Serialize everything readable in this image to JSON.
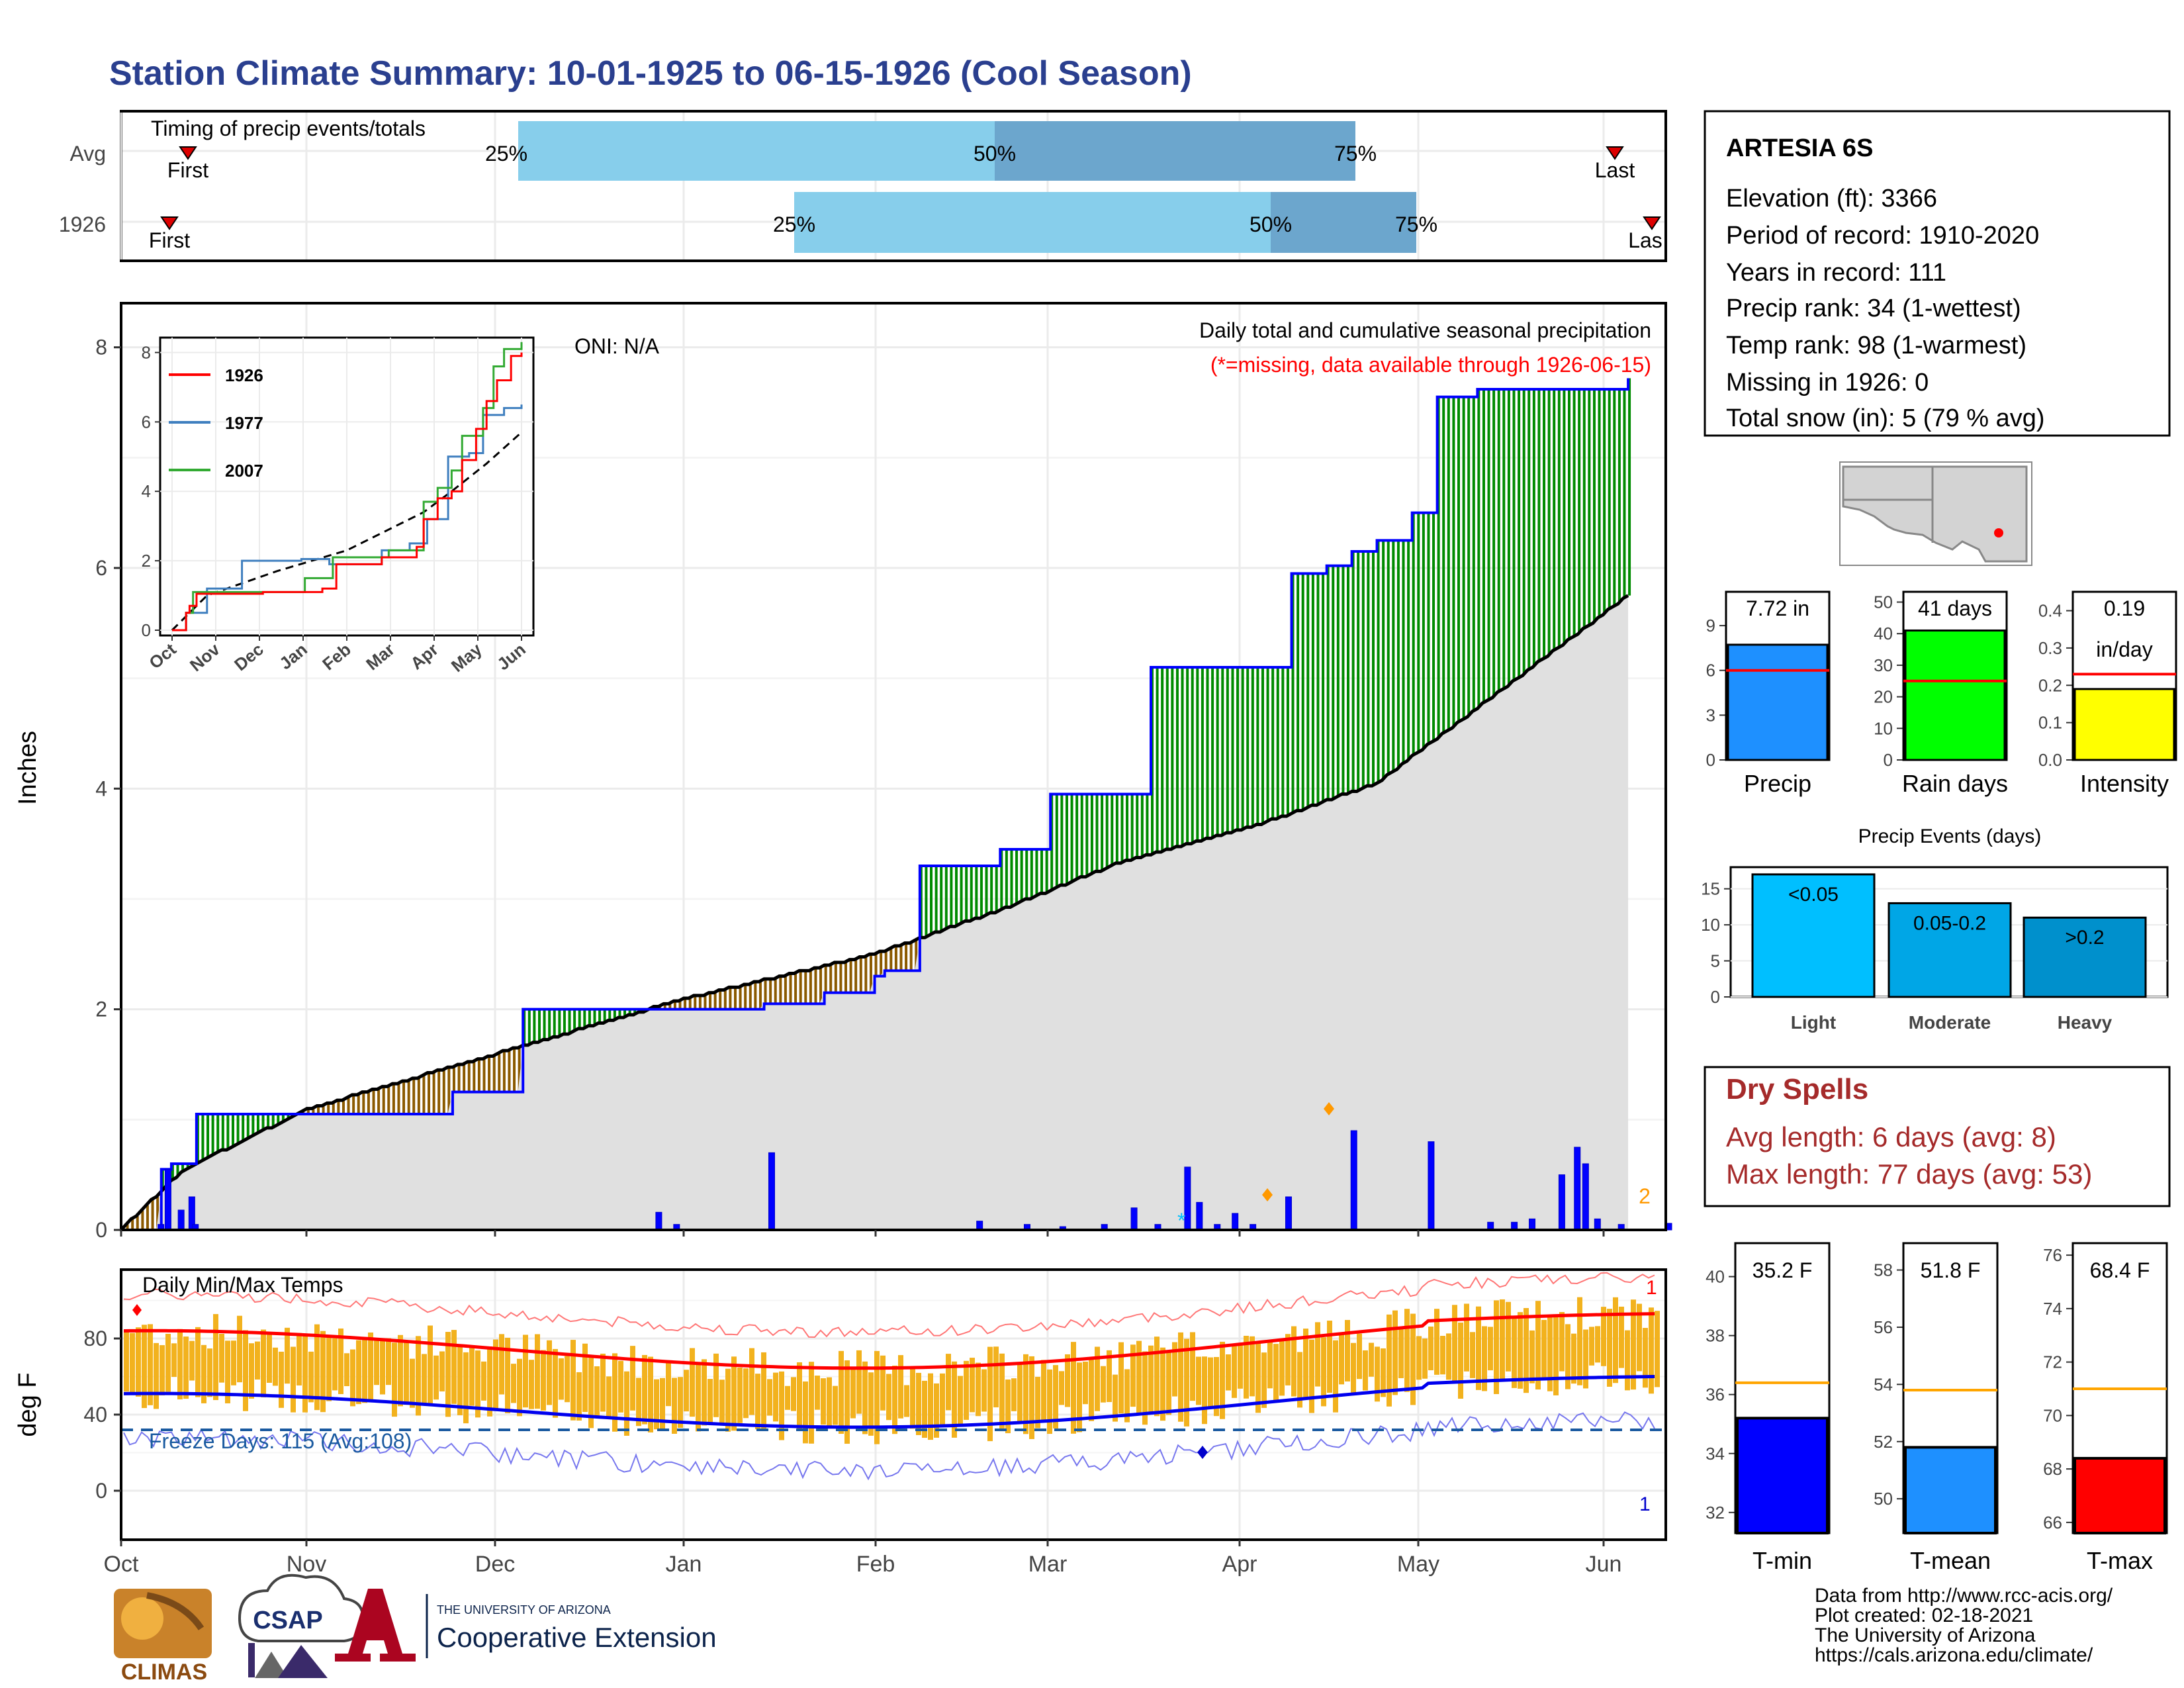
{
  "title": "Station Climate Summary: 10-01-1925 to 06-15-1926 (Cool Season)",
  "colors": {
    "title": "#2a3f8f",
    "light_blue": "#87ceeb",
    "mid_blue": "#6ca6cd",
    "green": "#008b00",
    "brown": "#8b5a00",
    "gray_fill": "#e0e0e0",
    "bar_blue": "#0000ff",
    "dry_red": "#a52a2a",
    "temp_bar": "#f2b21e",
    "tmax_line": "#ff0000",
    "tmin_line": "#0000ee",
    "blue_event": "#00bfff",
    "tmean_blue": "#1e90ff",
    "precip_bar": "#1e90ff",
    "rain_bar": "#00ff00",
    "int_bar": "#ffff00"
  },
  "timing": {
    "label": "Timing of precip events/totals",
    "rows": [
      "Avg",
      "1926"
    ],
    "first_label": "First",
    "last_labels": [
      "Last",
      "Las"
    ],
    "pct_labels": [
      "25%",
      "50%",
      "75%"
    ]
  },
  "main": {
    "ylabel": "Inches",
    "oni": "ONI: N/A",
    "note1": "Daily total and cumulative seasonal precipitation",
    "note2": "(*=missing, data available through 1926-06-15)",
    "right_num": "2",
    "yticks": [
      "0",
      "2",
      "4",
      "6",
      "8"
    ]
  },
  "inset": {
    "legend": [
      "1926",
      "1977",
      "2007"
    ],
    "yticks": [
      "0",
      "2",
      "4",
      "6",
      "8"
    ],
    "xticks": [
      "Oct",
      "Nov",
      "Dec",
      "Jan",
      "Feb",
      "Mar",
      "Apr",
      "May",
      "Jun"
    ]
  },
  "temps": {
    "title": "Daily Min/Max Temps",
    "freeze": "Freeze Days: 115 (Avg:108)",
    "ylabel": "deg F",
    "yticks": [
      "0",
      "40",
      "80"
    ],
    "top_num": "1",
    "bot_num": "1"
  },
  "months": [
    "Oct",
    "Nov",
    "Dec",
    "Jan",
    "Feb",
    "Mar",
    "Apr",
    "May",
    "Jun"
  ],
  "info": {
    "station": "ARTESIA 6S",
    "lines": [
      "Elevation (ft): 3366",
      "Period of record: 1910-2020",
      "Years in record: 111",
      "Precip rank: 34 (1-wettest)",
      "Temp rank: 98 (1-warmest)",
      "Missing in 1926: 0",
      "Total snow (in): 5 (79 % avg)"
    ]
  },
  "small_bars": [
    {
      "label": "Precip",
      "value_text": "7.72 in",
      "value": 7.72,
      "avg": 6.0,
      "max": 11,
      "ticks": [
        "0",
        "3",
        "6",
        "9"
      ],
      "tickvals": [
        0,
        3,
        6,
        9
      ]
    },
    {
      "label": "Rain days",
      "value_text": "41 days",
      "value": 41,
      "avg": 25,
      "max": 52,
      "ticks": [
        "0",
        "10",
        "20",
        "30",
        "40",
        "50"
      ],
      "tickvals": [
        0,
        10,
        20,
        30,
        40,
        50
      ]
    },
    {
      "label": "Intensity",
      "value_text": "0.19",
      "value_text2": "in/day",
      "value": 0.19,
      "avg": 0.23,
      "max": 0.44,
      "ticks": [
        "0.0",
        "0.1",
        "0.2",
        "0.3",
        "0.4"
      ],
      "tickvals": [
        0,
        0.1,
        0.2,
        0.3,
        0.4
      ]
    }
  ],
  "events": {
    "title": "Precip Events (days)",
    "cats": [
      "Light",
      "Moderate",
      "Heavy"
    ],
    "labels": [
      "<0.05",
      "0.05-0.2",
      ">0.2"
    ],
    "values": [
      17,
      13,
      11
    ],
    "yticks": [
      "0",
      "5",
      "10",
      "15"
    ],
    "colors": [
      "#00bfff",
      "#00a6e6",
      "#0090cc"
    ]
  },
  "dry": {
    "title": "Dry Spells",
    "avg": "Avg length: 6 days (avg: 8)",
    "max": "Max length: 77 days (avg: 53)"
  },
  "temp_bars": [
    {
      "label": "T-min",
      "value_text": "35.2 F",
      "value": 35.2,
      "avg": 36.4,
      "min": 31.3,
      "max": 41.0,
      "ticks": [
        "32",
        "34",
        "36",
        "38",
        "40"
      ],
      "tickvals": [
        32,
        34,
        36,
        38,
        40
      ]
    },
    {
      "label": "T-mean",
      "value_text": "51.8 F",
      "value": 51.8,
      "avg": 53.8,
      "min": 48.8,
      "max": 58.8,
      "ticks": [
        "50",
        "52",
        "54",
        "56",
        "58"
      ],
      "tickvals": [
        50,
        52,
        54,
        56,
        58
      ]
    },
    {
      "label": "T-max",
      "value_text": "68.4 F",
      "value": 68.4,
      "avg": 71.0,
      "min": 65.6,
      "max": 76.3,
      "ticks": [
        "66",
        "68",
        "70",
        "72",
        "74",
        "76"
      ],
      "tickvals": [
        66,
        68,
        70,
        72,
        74,
        76
      ]
    }
  ],
  "footer": {
    "lines": [
      "Data from http://www.rcc-acis.org/",
      "Plot created: 02-18-2021",
      "The University of Arizona",
      "https://cals.arizona.edu/climate/"
    ],
    "climas": "CLIMAS",
    "csap": "CSAP",
    "ua_small": "THE UNIVERSITY OF ARIZONA",
    "ua_big": "Cooperative Extension"
  },
  "chart_data": {
    "type": "area",
    "title": "Daily total and cumulative seasonal precipitation",
    "ylabel": "Inches",
    "ylim": [
      0,
      8.4
    ],
    "cumulative_1926": [
      [
        0,
        0
      ],
      [
        31,
        0.55
      ],
      [
        40,
        0.6
      ],
      [
        60,
        1.05
      ],
      [
        170,
        1.05
      ],
      [
        262,
        1.25
      ],
      [
        320,
        2.0
      ],
      [
        510,
        2.05
      ],
      [
        560,
        2.15
      ],
      [
        600,
        2.3
      ],
      [
        608,
        2.35
      ],
      [
        636,
        3.3
      ],
      [
        700,
        3.45
      ],
      [
        740,
        3.95
      ],
      [
        820,
        5.1
      ],
      [
        910,
        5.1
      ],
      [
        930,
        5.95
      ],
      [
        960,
        6.02
      ],
      [
        980,
        6.15
      ],
      [
        1000,
        6.25
      ],
      [
        1025,
        6.5
      ],
      [
        1045,
        7.55
      ],
      [
        1080,
        7.62
      ],
      [
        1180,
        7.62
      ],
      [
        1200,
        7.72
      ]
    ],
    "cumulative_avg": [
      [
        0,
        0
      ],
      [
        50,
        0.55
      ],
      [
        150,
        1.1
      ],
      [
        300,
        1.6
      ],
      [
        450,
        2.1
      ],
      [
        600,
        2.5
      ],
      [
        700,
        2.9
      ],
      [
        800,
        3.35
      ],
      [
        900,
        3.65
      ],
      [
        1000,
        4.05
      ],
      [
        1100,
        4.9
      ],
      [
        1200,
        5.75
      ]
    ],
    "daily_bars": [
      [
        31,
        0.05
      ],
      [
        37,
        0.55
      ],
      [
        48,
        0.18
      ],
      [
        57,
        0.3
      ],
      [
        60,
        0.05
      ],
      [
        450,
        0.16
      ],
      [
        465,
        0.05
      ],
      [
        545,
        0.7
      ],
      [
        720,
        0.08
      ],
      [
        760,
        0.05
      ],
      [
        790,
        0.03
      ],
      [
        825,
        0.05
      ],
      [
        850,
        0.2
      ],
      [
        870,
        0.05
      ],
      [
        895,
        0.57
      ],
      [
        905,
        0.25
      ],
      [
        920,
        0.05
      ],
      [
        935,
        0.15
      ],
      [
        950,
        0.05
      ],
      [
        980,
        0.3
      ],
      [
        1035,
        0.9
      ],
      [
        1100,
        0.8
      ],
      [
        1150,
        0.07
      ],
      [
        1170,
        0.07
      ],
      [
        1185,
        0.1
      ],
      [
        1210,
        0.5
      ],
      [
        1223,
        0.75
      ],
      [
        1230,
        0.6
      ],
      [
        1240,
        0.1
      ],
      [
        1260,
        0.05
      ],
      [
        1300,
        0.06
      ]
    ],
    "temps": {
      "xlabel_months": [
        "Oct",
        "Nov",
        "Dec",
        "Jan",
        "Feb",
        "Mar",
        "Apr",
        "May",
        "Jun"
      ],
      "avg_tmax_start": 84,
      "avg_tmax_end": 93,
      "avg_tmin_start": 51,
      "avg_tmin_end": 60,
      "freeze_line": 32
    },
    "inset_series": [
      {
        "name": "1926",
        "color": "#ff0000"
      },
      {
        "name": "1977",
        "color": "#3f7fbf"
      },
      {
        "name": "2007",
        "color": "#33aa33"
      }
    ]
  }
}
